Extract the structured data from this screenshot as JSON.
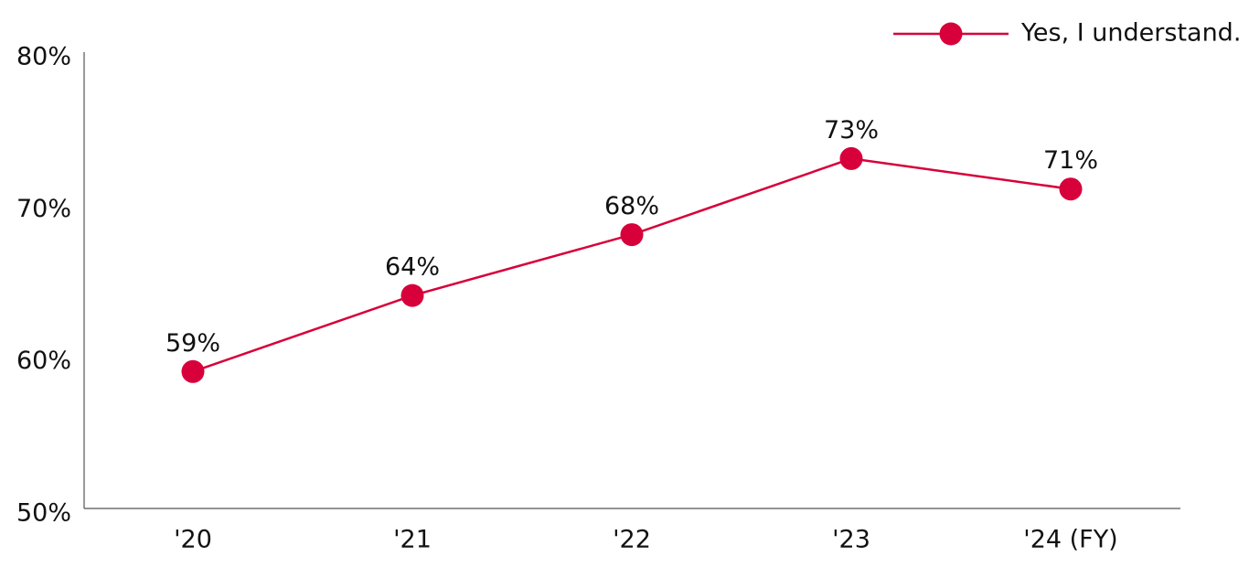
{
  "chart_data": {
    "type": "line",
    "categories": [
      "'20",
      "'21",
      "'22",
      "'23",
      "'24 (FY)"
    ],
    "series": [
      {
        "name": "Yes, I understand.",
        "color": "#d7003a",
        "values": [
          59,
          64,
          68,
          73,
          71
        ],
        "value_labels": [
          "59%",
          "64%",
          "68%",
          "73%",
          "71%"
        ]
      }
    ],
    "ylim": [
      50,
      80
    ],
    "yticks": [
      {
        "value": 50,
        "label": "50%"
      },
      {
        "value": 60,
        "label": "60%"
      },
      {
        "value": 70,
        "label": "70%"
      },
      {
        "value": 80,
        "label": "80%"
      }
    ],
    "grid": false,
    "legend": "top-right"
  }
}
